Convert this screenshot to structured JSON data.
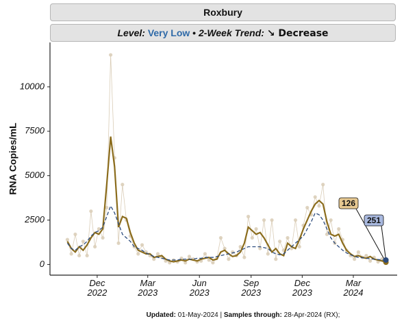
{
  "chart_data": {
    "type": "line",
    "title": "Roxbury",
    "subtitle": {
      "level_label": "Level:",
      "level": "Very Low",
      "separator": "•",
      "trend_label": "2-Week Trend:",
      "trend": "↘ Decrease"
    },
    "y_label": "RNA Copies/mL",
    "footer": {
      "updated_label": "Updated:",
      "updated": "01-May-2024",
      "separator": "|",
      "samples_label": "Samples through:",
      "samples": "28-Apr-2024 (RX);"
    },
    "x": [
      "2022-10-09",
      "2022-10-16",
      "2022-10-23",
      "2022-10-30",
      "2022-11-06",
      "2022-11-13",
      "2022-11-20",
      "2022-11-27",
      "2022-12-04",
      "2022-12-11",
      "2022-12-18",
      "2022-12-25",
      "2023-01-01",
      "2023-01-08",
      "2023-01-15",
      "2023-01-22",
      "2023-01-29",
      "2023-02-05",
      "2023-02-12",
      "2023-02-19",
      "2023-02-26",
      "2023-03-05",
      "2023-03-12",
      "2023-03-19",
      "2023-03-26",
      "2023-04-02",
      "2023-04-09",
      "2023-04-16",
      "2023-04-23",
      "2023-04-30",
      "2023-05-07",
      "2023-05-14",
      "2023-05-21",
      "2023-05-28",
      "2023-06-04",
      "2023-06-11",
      "2023-06-18",
      "2023-06-25",
      "2023-07-02",
      "2023-07-09",
      "2023-07-16",
      "2023-07-23",
      "2023-07-30",
      "2023-08-06",
      "2023-08-13",
      "2023-08-20",
      "2023-08-27",
      "2023-09-03",
      "2023-09-10",
      "2023-09-17",
      "2023-09-24",
      "2023-10-01",
      "2023-10-08",
      "2023-10-15",
      "2023-10-22",
      "2023-10-29",
      "2023-11-05",
      "2023-11-12",
      "2023-11-19",
      "2023-11-26",
      "2023-12-03",
      "2023-12-10",
      "2023-12-17",
      "2023-12-24",
      "2023-12-31",
      "2024-01-07",
      "2024-01-14",
      "2024-01-21",
      "2024-01-28",
      "2024-02-04",
      "2024-02-11",
      "2024-02-18",
      "2024-02-25",
      "2024-03-03",
      "2024-03-10",
      "2024-03-17",
      "2024-03-24",
      "2024-03-31",
      "2024-04-07",
      "2024-04-14",
      "2024-04-21",
      "2024-04-28"
    ],
    "series": [
      {
        "style": "points",
        "color": "#d9ccb6",
        "values": [
          1400,
          600,
          1700,
          500,
          1300,
          500,
          3000,
          1000,
          2000,
          1500,
          3200,
          11800,
          6000,
          1200,
          4500,
          2500,
          1600,
          1000,
          600,
          1100,
          700,
          500,
          300,
          600,
          400,
          200,
          100,
          250,
          150,
          350,
          100,
          450,
          300,
          150,
          200,
          600,
          250,
          100,
          350,
          1500,
          900,
          300,
          700,
          500,
          1000,
          400,
          2700,
          1500,
          2000,
          900,
          2500,
          600,
          2500,
          300,
          1300,
          800,
          1500,
          900,
          2500,
          1000,
          2200,
          3200,
          2800,
          3800,
          3300,
          4500,
          1700,
          2500,
          1200,
          2000,
          1400,
          800,
          500,
          300,
          700,
          400,
          500,
          200,
          400,
          150,
          300,
          100
        ]
      },
      {
        "style": "solid",
        "color": "#8b6c1c",
        "label_color": "#e6c891",
        "values": [
          1300,
          900,
          700,
          1000,
          800,
          1100,
          1500,
          1800,
          1700,
          2000,
          4500,
          7200,
          5500,
          2100,
          2700,
          2600,
          1800,
          1200,
          800,
          700,
          600,
          600,
          400,
          450,
          500,
          300,
          200,
          150,
          200,
          250,
          200,
          300,
          250,
          200,
          300,
          350,
          400,
          250,
          300,
          700,
          800,
          600,
          450,
          500,
          700,
          1200,
          2100,
          1900,
          1700,
          1800,
          1500,
          1100,
          700,
          900,
          600,
          500,
          1200,
          1000,
          900,
          1400,
          2000,
          2500,
          3000,
          3400,
          3600,
          3400,
          2400,
          1700,
          1600,
          1700,
          1200,
          800,
          600,
          450,
          500,
          400,
          350,
          450,
          300,
          250,
          200,
          126
        ]
      },
      {
        "style": "dashed",
        "color": "#2b4a7c",
        "label_color": "#a8b8de",
        "values": [
          1200,
          900,
          800,
          1000,
          1100,
          1300,
          1600,
          1800,
          1900,
          2100,
          2700,
          3300,
          2900,
          2300,
          1700,
          1500,
          1300,
          1000,
          900,
          800,
          650,
          550,
          450,
          400,
          350,
          300,
          250,
          250,
          250,
          300,
          300,
          300,
          300,
          350,
          350,
          400,
          400,
          400,
          450,
          500,
          550,
          600,
          650,
          700,
          800,
          900,
          1000,
          1000,
          1000,
          1000,
          950,
          900,
          700,
          600,
          550,
          600,
          800,
          1000,
          1200,
          1400,
          1600,
          2000,
          2400,
          2900,
          2800,
          2500,
          2000,
          1500,
          1200,
          1000,
          800,
          650,
          550,
          450,
          400,
          380,
          350,
          320,
          300,
          280,
          260,
          251
        ]
      }
    ],
    "xlim": [
      "2022-09-08",
      "2024-05-18"
    ],
    "xticks": [
      {
        "value": "2022-12-01",
        "label": "Dec 2022"
      },
      {
        "value": "2023-03-01",
        "label": "Mar 2023"
      },
      {
        "value": "2023-06-01",
        "label": "Jun 2023"
      },
      {
        "value": "2023-09-01",
        "label": "Sep 2023"
      },
      {
        "value": "2023-12-01",
        "label": "Dec 2023"
      },
      {
        "value": "2024-03-01",
        "label": "Mar 2024"
      }
    ],
    "ylim": [
      -600,
      12500
    ],
    "yticks": [
      0,
      2500,
      5000,
      7500,
      10000
    ]
  }
}
